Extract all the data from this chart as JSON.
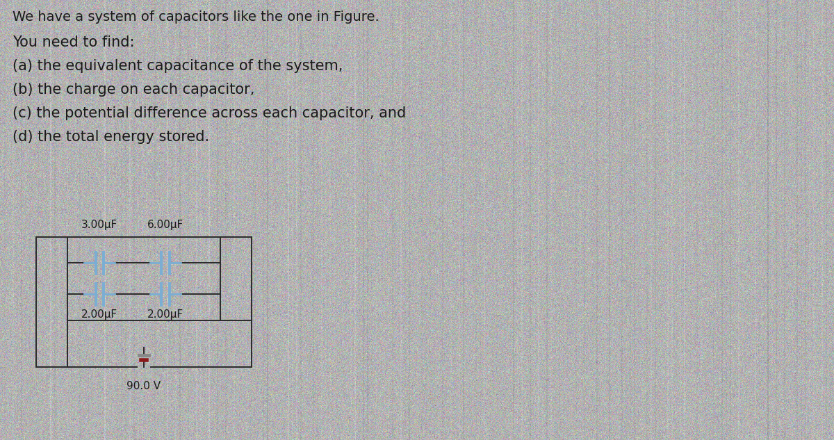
{
  "background_color": "#b2b2b2",
  "title_text": "We have a system of capacitors like the one in Figure.",
  "problem_lines": [
    "You need to find:",
    "(a) the equivalent capacitance of the system,",
    "(b) the charge on each capacitor,",
    "(c) the potential difference across each capacitor, and",
    "(d) the total energy stored."
  ],
  "cap_labels_top": [
    "3.00μF",
    "6.00μF"
  ],
  "cap_labels_bot": [
    "2.00μF",
    "2.00μF"
  ],
  "voltage_label": "90.0 V",
  "cap_color": "#7aaed4",
  "wire_color": "#2a2a2a",
  "battery_neg_color": "#888888",
  "battery_pos_color": "#8b1a1a",
  "text_color": "#1a1a1a",
  "font_size_title": 14,
  "font_size_body": 15,
  "font_size_labels": 11,
  "noise_seed": 42,
  "noise_amplitude": 18
}
